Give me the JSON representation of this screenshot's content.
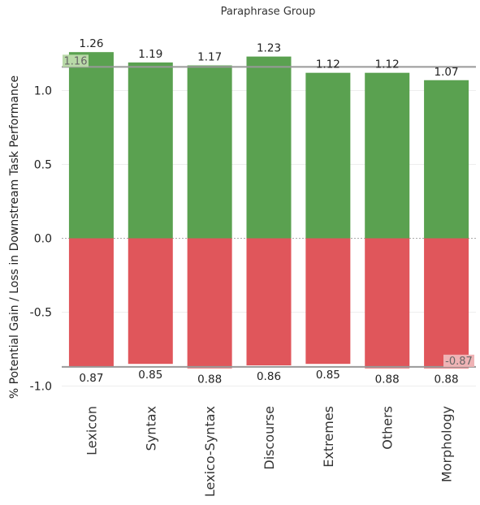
{
  "chart_data": {
    "type": "bar",
    "title": "Paraphrase Group",
    "ylabel": "% Potential Gain / Loss in Downstream Task Performance",
    "xlabel": "",
    "categories": [
      "Lexicon",
      "Syntax",
      "Lexico-Syntax",
      "Discourse",
      "Extremes",
      "Others",
      "Morphology"
    ],
    "series": [
      {
        "values": [
          1.26,
          1.19,
          1.17,
          1.23,
          1.12,
          1.12,
          1.07
        ]
      },
      {
        "values": [
          -0.87,
          -0.85,
          -0.88,
          -0.86,
          -0.85,
          -0.88,
          -0.88
        ]
      }
    ],
    "value_labels_top": [
      "1.26",
      "1.19",
      "1.17",
      "1.23",
      "1.12",
      "1.12",
      "1.07"
    ],
    "value_labels_bottom": [
      "0.87",
      "0.85",
      "0.88",
      "0.86",
      "0.85",
      "0.88",
      "0.88"
    ],
    "ylim": [
      -1.0,
      1.3
    ],
    "yticks": [
      "1.0",
      "0.5",
      "0.0",
      "-0.5",
      "-1.0"
    ],
    "ytick_values": [
      1.0,
      0.5,
      0.0,
      -0.5,
      -1.0
    ],
    "reference_lines": [
      {
        "value": 1.16,
        "label": "1.16",
        "label_side": "left"
      },
      {
        "value": -0.87,
        "label": "-0.87",
        "label_side": "right"
      }
    ],
    "colors": {
      "gain": "#5aa150",
      "loss": "#e0565b",
      "reference": "#999999",
      "label_bg": "#b9d9a8",
      "label_bg_loss": "#efb3b5"
    },
    "grid": true
  }
}
